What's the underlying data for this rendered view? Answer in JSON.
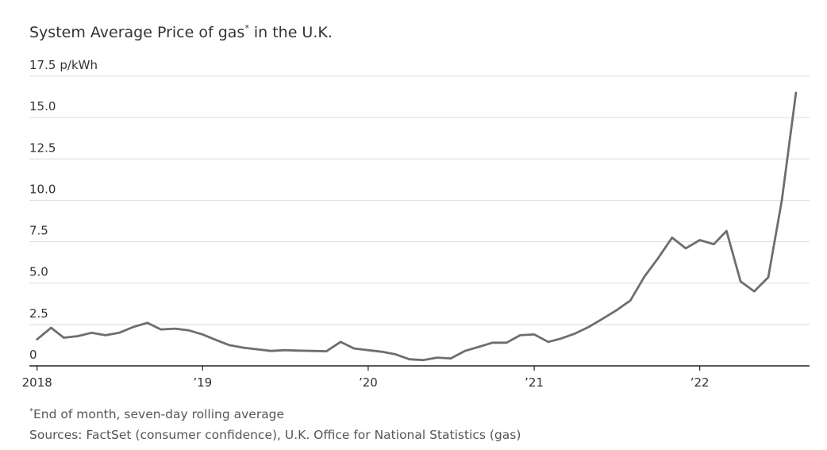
{
  "chart_data": {
    "type": "line",
    "title": "System Average Price of gas",
    "title_marker": "*",
    "title_suffix": " in the U.K.",
    "ylabel_unit": "p/kWh",
    "ylim": [
      0,
      17.5
    ],
    "yticks": [
      0,
      2.5,
      5.0,
      7.5,
      10.0,
      12.5,
      15.0,
      17.5
    ],
    "ytick_labels": [
      "0",
      "2.5",
      "5.0",
      "7.5",
      "10.0",
      "12.5",
      "15.0",
      "17.5"
    ],
    "xlim": [
      "2017-12-15",
      "2022-08-31"
    ],
    "xticks": [
      "2018-01-01",
      "2019-01-01",
      "2020-01-01",
      "2021-01-01",
      "2022-01-01"
    ],
    "xtick_labels": [
      "2018",
      "’19",
      "’20",
      "’21",
      "’22"
    ],
    "grid": true,
    "series": [
      {
        "color": "#6e6e6e",
        "x": [
          "2018-01",
          "2018-02",
          "2018-03",
          "2018-04",
          "2018-05",
          "2018-06",
          "2018-07",
          "2018-08",
          "2018-09",
          "2018-10",
          "2018-11",
          "2018-12",
          "2019-01",
          "2019-02",
          "2019-03",
          "2019-04",
          "2019-05",
          "2019-06",
          "2019-07",
          "2019-08",
          "2019-09",
          "2019-10",
          "2019-11",
          "2019-12",
          "2020-01",
          "2020-02",
          "2020-03",
          "2020-04",
          "2020-05",
          "2020-06",
          "2020-07",
          "2020-08",
          "2020-09",
          "2020-10",
          "2020-11",
          "2020-12",
          "2021-01",
          "2021-02",
          "2021-03",
          "2021-04",
          "2021-05",
          "2021-06",
          "2021-07",
          "2021-08",
          "2021-09",
          "2021-10",
          "2021-11",
          "2021-12",
          "2022-01",
          "2022-02",
          "2022-03",
          "2022-04",
          "2022-05",
          "2022-06",
          "2022-07",
          "2022-08"
        ],
        "values": [
          1.6,
          2.3,
          1.7,
          1.8,
          2.0,
          1.85,
          2.0,
          2.35,
          2.6,
          2.2,
          2.25,
          2.15,
          1.9,
          1.55,
          1.25,
          1.1,
          1.0,
          0.9,
          0.95,
          0.92,
          0.9,
          0.88,
          1.45,
          1.05,
          0.95,
          0.85,
          0.7,
          0.4,
          0.35,
          0.5,
          0.45,
          0.9,
          1.15,
          1.4,
          1.4,
          1.85,
          1.9,
          1.45,
          1.65,
          1.95,
          2.35,
          2.85,
          3.35,
          3.95,
          5.4,
          6.5,
          7.75,
          7.1,
          7.6,
          7.35,
          8.15,
          5.1,
          4.5,
          5.35,
          10.0,
          16.5
        ]
      }
    ]
  },
  "footnotes": {
    "marker": "*",
    "note": "End of month, seven-day rolling average",
    "sources": "Sources: FactSet (consumer confidence), U.K. Office for National Statistics (gas)"
  }
}
